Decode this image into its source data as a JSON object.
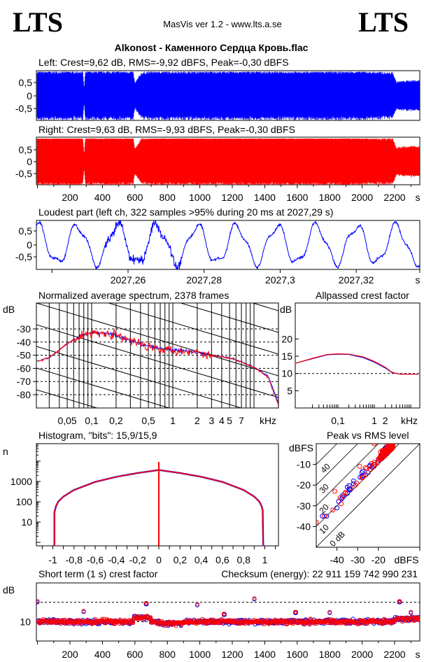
{
  "header": {
    "logo_left": "LTS",
    "logo_right": "LTS",
    "app_title": "MasVis ver 1.2 - www.lts.a.se",
    "file_title": "Alkonost - Каменного Сердца Кровь.flac"
  },
  "colors": {
    "left": "#0000ff",
    "right": "#ff0000",
    "axes": "#000000"
  },
  "chart_data": [
    {
      "type": "area",
      "title": "Left: Crest=9,62 dB, RMS=-9,92 dBFS, Peak=-0,30 dBFS",
      "yticks": [
        "0,5",
        "0",
        "-0,5"
      ],
      "ylim": [
        -1,
        1
      ],
      "xlim": [
        0,
        2390
      ],
      "series": [
        {
          "channel": "left",
          "color": "#0000ff",
          "peak_envelope": [
            [
              0,
              0.95
            ],
            [
              280,
              0.95
            ],
            [
              287,
              0.3
            ],
            [
              295,
              0.95
            ],
            [
              590,
              0.95
            ],
            [
              600,
              0.5
            ],
            [
              640,
              0.9
            ],
            [
              700,
              0.95
            ],
            [
              1500,
              0.95
            ],
            [
              1950,
              0.95
            ],
            [
              2000,
              0.95
            ],
            [
              2190,
              0.9
            ],
            [
              2210,
              0.55
            ],
            [
              2300,
              0.6
            ],
            [
              2390,
              0.6
            ]
          ]
        }
      ]
    },
    {
      "type": "area",
      "title": "Right: Crest=9,63 dB, RMS=-9,93 dBFS, Peak=-0,30 dBFS",
      "yticks": [
        "0,5",
        "0",
        "-0,5"
      ],
      "xticks": [
        "200",
        "400",
        "600",
        "800",
        "1000",
        "1200",
        "1400",
        "1600",
        "1800",
        "2000",
        "2200"
      ],
      "xunit": "s",
      "ylim": [
        -1,
        1
      ],
      "xlim": [
        0,
        2390
      ],
      "series": [
        {
          "channel": "right",
          "color": "#ff0000",
          "peak_envelope": [
            [
              0,
              0.95
            ],
            [
              280,
              0.95
            ],
            [
              287,
              0.3
            ],
            [
              295,
              0.95
            ],
            [
              590,
              0.95
            ],
            [
              600,
              0.5
            ],
            [
              640,
              0.9
            ],
            [
              700,
              0.95
            ],
            [
              1500,
              0.95
            ],
            [
              1950,
              0.95
            ],
            [
              2000,
              0.95
            ],
            [
              2190,
              0.9
            ],
            [
              2210,
              0.55
            ],
            [
              2300,
              0.6
            ],
            [
              2390,
              0.6
            ]
          ]
        }
      ]
    },
    {
      "type": "line",
      "title": "Loudest part (left  ch, 322 samples >95% during 20 ms at 2027,29 s)",
      "yticks": [
        "0,5",
        "0",
        "-0,5"
      ],
      "xticks": [
        "2027,26",
        "2027,28",
        "2027,3",
        "2027,32"
      ],
      "xunit": "s",
      "ylim": [
        -1,
        1
      ],
      "xlim": [
        2027.236,
        2027.337
      ],
      "series": [
        {
          "channel": "left",
          "color": "#0000ff"
        }
      ]
    },
    {
      "type": "line",
      "title": "Normalized average spectrum, 2378 frames",
      "ylabel": "dB",
      "yticks": [
        "-30",
        "-40",
        "-50",
        "-60",
        "-70",
        "-80"
      ],
      "xticks": [
        "0,05",
        "0,1",
        "0,2",
        "0,5",
        "1",
        "2",
        "3",
        "4",
        "5",
        "7"
      ],
      "xunit": "kHz",
      "xscale": "log",
      "xlim": [
        0.02,
        20
      ],
      "ylim": [
        -90,
        -10
      ],
      "grid": true,
      "x": [
        0.02,
        0.03,
        0.04,
        0.05,
        0.07,
        0.1,
        0.15,
        0.2,
        0.3,
        0.5,
        0.7,
        1,
        1.5,
        2,
        3,
        5,
        7,
        10,
        15,
        20
      ],
      "series": [
        {
          "channel": "left",
          "color": "#0000ff",
          "values": [
            -55,
            -52,
            -46,
            -41,
            -36,
            -33,
            -33,
            -35,
            -39,
            -43,
            -45,
            -46,
            -47,
            -48,
            -50,
            -52,
            -55,
            -59,
            -66,
            -86
          ]
        },
        {
          "channel": "right",
          "color": "#ff0000",
          "values": [
            -55,
            -52,
            -46,
            -41,
            -36,
            -33,
            -33,
            -35,
            -39,
            -43,
            -45,
            -46,
            -47,
            -48,
            -50,
            -52,
            -55,
            -59,
            -67,
            -88
          ]
        }
      ]
    },
    {
      "type": "line",
      "title": "Allpassed crest factor",
      "ylabel": "dB",
      "yticks": [
        "20",
        "15",
        "10",
        "5"
      ],
      "xticks": [
        "0,1",
        "1",
        "2"
      ],
      "xunit": "kHz",
      "xscale": "log",
      "ylim": [
        0,
        30
      ],
      "reference_line": 10,
      "x": [
        0.007,
        0.02,
        0.05,
        0.1,
        0.2,
        0.5,
        1,
        2,
        3,
        5,
        16
      ],
      "series": [
        {
          "channel": "left",
          "color": "#0000ff",
          "values": [
            13,
            14.3,
            15.4,
            15.6,
            15.5,
            14.6,
            13.3,
            11.6,
            10.3,
            9.8,
            9.8
          ]
        },
        {
          "channel": "right",
          "color": "#ff0000",
          "values": [
            13,
            14.4,
            15.5,
            15.7,
            15.6,
            14.8,
            13.5,
            11.8,
            10.4,
            9.8,
            9.8
          ]
        }
      ]
    },
    {
      "type": "line",
      "title": "Histogram, \"bits\": 15,9/15,9",
      "ylabel": "n",
      "yticks": [
        "1000",
        "100",
        "10"
      ],
      "xticks": [
        "-1",
        "-0,8",
        "-0,6",
        "-0,4",
        "-0,2",
        "0",
        "0,2",
        "0,4",
        "0,6",
        "0,8",
        "1"
      ],
      "yscale": "log",
      "xlim": [
        -1.15,
        1.15
      ],
      "x": [
        -0.985,
        -0.97,
        -0.95,
        -0.9,
        -0.8,
        -0.6,
        -0.4,
        -0.2,
        -0.01,
        0,
        0.01,
        0.2,
        0.4,
        0.6,
        0.8,
        0.9,
        0.95,
        0.97,
        0.985
      ],
      "series": [
        {
          "channel": "left",
          "color": "#0000ff",
          "values": [
            30,
            60,
            100,
            180,
            380,
            950,
            1700,
            2600,
            3600,
            40000,
            3600,
            2600,
            1700,
            950,
            380,
            180,
            100,
            60,
            30
          ]
        },
        {
          "channel": "right",
          "color": "#ff0000",
          "values": [
            30,
            60,
            100,
            180,
            380,
            950,
            1700,
            2600,
            3600,
            40000,
            3600,
            2600,
            1700,
            950,
            380,
            180,
            100,
            60,
            30
          ]
        }
      ]
    },
    {
      "type": "scatter",
      "title": "Peak vs RMS level",
      "ylabel": "dBFS",
      "xunit": "dBFS",
      "yticks": [
        "-10",
        "-20",
        "-30",
        "-40"
      ],
      "xticks": [
        "-40",
        "-30",
        "-20"
      ],
      "xlim": [
        -50,
        0
      ],
      "ylim": [
        -50,
        0
      ],
      "crest_lines": [
        "40",
        "30",
        "20",
        "10",
        "0 dB"
      ],
      "series": [
        {
          "channel": "left",
          "color": "#0000ff",
          "points": [
            [
              -47,
              -35
            ],
            [
              -45,
              -35
            ],
            [
              -40,
              -31
            ],
            [
              -35,
              -21
            ],
            [
              -35,
              -24
            ],
            [
              -32,
              -18
            ],
            [
              -28,
              -14
            ],
            [
              -25,
              -14
            ],
            [
              -20,
              -8
            ],
            [
              -18,
              -5
            ],
            [
              -15,
              -2
            ],
            [
              -13,
              -1
            ]
          ]
        },
        {
          "channel": "right",
          "color": "#ff0000",
          "points": [
            [
              -50,
              -38
            ],
            [
              -46,
              -35
            ],
            [
              -42,
              -32
            ],
            [
              -41,
              -23
            ],
            [
              -38,
              -29
            ],
            [
              -36,
              -24
            ],
            [
              -31,
              -20
            ],
            [
              -29,
              -11
            ],
            [
              -26,
              -15
            ],
            [
              -22,
              -9
            ],
            [
              -22,
              0
            ],
            [
              -19,
              -4
            ],
            [
              -16,
              -3
            ],
            [
              -13,
              -1
            ]
          ]
        }
      ]
    },
    {
      "type": "scatter",
      "title": "Short term (1 s) crest factor",
      "checksum": "Checksum (energy):  22 911 159 742 990 231",
      "ylabel": "dB",
      "yticks": [
        "10"
      ],
      "xticks": [
        "200",
        "400",
        "600",
        "800",
        "1000",
        "1200",
        "1400",
        "1600",
        "1800",
        "2000",
        "2200"
      ],
      "xunit": "s",
      "xlim": [
        0,
        2390
      ],
      "ylim": [
        0,
        30
      ],
      "reference_line": 20,
      "peaks": [
        [
          0,
          20.5
        ],
        [
          285,
          15.5
        ],
        [
          670,
          19.5
        ],
        [
          985,
          19
        ],
        [
          1150,
          14
        ],
        [
          1335,
          22
        ],
        [
          1590,
          15
        ],
        [
          1800,
          15
        ],
        [
          2230,
          20.5
        ],
        [
          2300,
          15
        ],
        [
          2385,
          14
        ]
      ],
      "typical_value": 10
    }
  ]
}
